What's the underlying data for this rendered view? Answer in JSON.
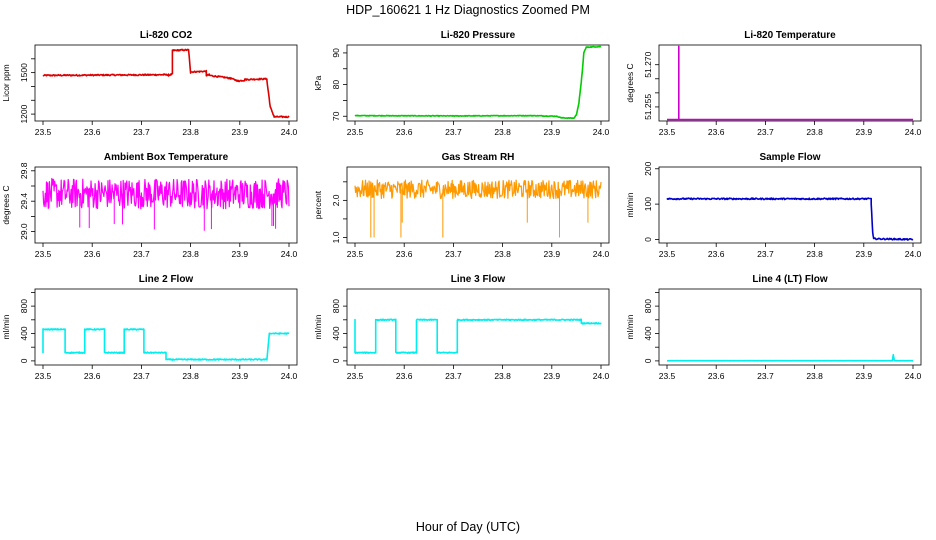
{
  "figure": {
    "title": "HDP_160621  1 Hz Diagnostics Zoomed PM",
    "xlabel": "Hour of Day (UTC)"
  },
  "chart_data": [
    {
      "type": "line",
      "title": "Li-820 CO2",
      "ylabel": "Licor ppm",
      "color": "#dd0000",
      "xlim": [
        23.5,
        24.0
      ],
      "xticks": [
        "23.5",
        "23.6",
        "23.7",
        "23.8",
        "23.9",
        "24.0"
      ],
      "ylim": [
        1150,
        1700
      ],
      "yticks": [
        1200,
        1300,
        1400,
        1500,
        1600
      ],
      "ytick_labels": [
        "1200",
        "",
        "",
        "1500",
        ""
      ],
      "x": [
        23.5,
        23.755,
        23.755,
        23.763,
        23.763,
        23.796,
        23.796,
        23.8,
        23.8,
        23.832,
        23.832,
        23.838,
        23.838,
        23.88,
        23.88,
        23.897,
        23.897,
        23.91,
        23.91,
        23.955,
        23.955,
        23.962,
        23.97,
        24.0
      ],
      "y": [
        1480,
        1485,
        1480,
        1490,
        1660,
        1665,
        1660,
        1500,
        1505,
        1510,
        1480,
        1485,
        1480,
        1460,
        1460,
        1440,
        1440,
        1445,
        1450,
        1455,
        1445,
        1250,
        1180,
        1180
      ],
      "noise": 5
    },
    {
      "type": "line",
      "title": "Li-820 Pressure",
      "ylabel": "kPa",
      "color": "#00cc00",
      "xlim": [
        23.5,
        24.0
      ],
      "xticks": [
        "23.5",
        "23.6",
        "23.7",
        "23.8",
        "23.9",
        "24.0"
      ],
      "ylim": [
        68.5,
        92.5
      ],
      "yticks": [
        70,
        75,
        80,
        85,
        90
      ],
      "ytick_labels": [
        "70",
        "",
        "80",
        "",
        "90"
      ],
      "x": [
        23.5,
        23.7,
        23.86,
        23.91,
        23.92,
        23.945,
        23.95,
        23.955,
        23.962,
        23.965,
        23.97,
        24.0
      ],
      "y": [
        70.2,
        70.1,
        70.2,
        70.0,
        69.5,
        69.4,
        70.5,
        74,
        84,
        90,
        91.8,
        92
      ],
      "noise": 0.1
    },
    {
      "type": "line",
      "title": "Li-820 Temperature",
      "ylabel": "degrees C",
      "color": "#cc00cc",
      "xlim": [
        23.5,
        24.0
      ],
      "xticks": [
        "23.5",
        "23.6",
        "23.7",
        "23.8",
        "23.9",
        "24.0"
      ],
      "ylim": [
        51.25,
        51.277
      ],
      "yticks": [
        51.255,
        51.26,
        51.265,
        51.27
      ],
      "ytick_labels": [
        "51.255",
        "",
        "",
        "51.270"
      ],
      "x": [
        23.5,
        23.524,
        23.524,
        23.524,
        23.524,
        24.0
      ],
      "y": [
        51.2505,
        51.2505,
        51.2505,
        51.2765,
        51.2505,
        51.2505
      ],
      "noise": 0
    },
    {
      "type": "line",
      "title": "Ambient Box Temperature",
      "ylabel": "degrees C",
      "color": "#ff00ff",
      "xlim": [
        23.5,
        24.0
      ],
      "xticks": [
        "23.5",
        "23.6",
        "23.7",
        "23.8",
        "23.9",
        "24.0"
      ],
      "ylim": [
        28.85,
        29.85
      ],
      "yticks": [
        29.0,
        29.2,
        29.4,
        29.6,
        29.8
      ],
      "ytick_labels": [
        "29.0",
        "",
        "29.4",
        "",
        "29.8"
      ],
      "x": [
        23.5,
        24.0
      ],
      "y": [
        29.5,
        29.5
      ],
      "noise": 0.2
    },
    {
      "type": "line",
      "title": "Gas Stream RH",
      "ylabel": "percent",
      "color": "#ff9900",
      "xlim": [
        23.5,
        24.0
      ],
      "xticks": [
        "23.5",
        "23.6",
        "23.7",
        "23.8",
        "23.9",
        "24.0"
      ],
      "ylim": [
        0.85,
        2.9
      ],
      "yticks": [
        1.0,
        1.5,
        2.0,
        2.5
      ],
      "ytick_labels": [
        "1.0",
        "",
        "2.0",
        ""
      ],
      "x": [
        23.5,
        24.0
      ],
      "y": [
        2.3,
        2.3
      ],
      "noise": 0.25
    },
    {
      "type": "line",
      "title": "Sample Flow",
      "ylabel": "ml/min",
      "color": "#0000cc",
      "xlim": [
        23.5,
        24.0
      ],
      "xticks": [
        "23.5",
        "23.6",
        "23.7",
        "23.8",
        "23.9",
        "24.0"
      ],
      "ylim": [
        -10,
        205
      ],
      "yticks": [
        0,
        100,
        200
      ],
      "ytick_labels": [
        "0",
        "100",
        "200"
      ],
      "x": [
        23.5,
        23.915,
        23.915,
        23.918,
        23.92,
        24.0
      ],
      "y": [
        115,
        115,
        100,
        20,
        2,
        0
      ],
      "noise": 2
    },
    {
      "type": "line",
      "title": "Line 2 Flow",
      "ylabel": "ml/min",
      "color": "#00eeee",
      "xlim": [
        23.5,
        24.0
      ],
      "xticks": [
        "23.5",
        "23.6",
        "23.7",
        "23.8",
        "23.9",
        "24.0"
      ],
      "ylim": [
        -60,
        1050
      ],
      "yticks": [
        0,
        200,
        400,
        600,
        800,
        1000
      ],
      "ytick_labels": [
        "0",
        "",
        "400",
        "",
        "800",
        ""
      ],
      "x": [
        23.5,
        23.5,
        23.545,
        23.545,
        23.585,
        23.585,
        23.625,
        23.625,
        23.665,
        23.665,
        23.705,
        23.705,
        23.75,
        23.75,
        23.955,
        23.96,
        24.0
      ],
      "y": [
        120,
        460,
        460,
        120,
        120,
        460,
        460,
        120,
        120,
        460,
        460,
        120,
        120,
        20,
        20,
        400,
        400
      ],
      "noise": 8
    },
    {
      "type": "line",
      "title": "Line 3 Flow",
      "ylabel": "ml/min",
      "color": "#00eeee",
      "xlim": [
        23.5,
        24.0
      ],
      "xticks": [
        "23.5",
        "23.6",
        "23.7",
        "23.8",
        "23.9",
        "24.0"
      ],
      "ylim": [
        -60,
        1050
      ],
      "yticks": [
        0,
        200,
        400,
        600,
        800
      ],
      "ytick_labels": [
        "0",
        "",
        "400",
        "",
        "800"
      ],
      "x": [
        23.5,
        23.5,
        23.5,
        23.542,
        23.542,
        23.583,
        23.583,
        23.625,
        23.625,
        23.667,
        23.667,
        23.708,
        23.708,
        23.96,
        23.96,
        24.0
      ],
      "y": [
        600,
        600,
        120,
        120,
        600,
        600,
        120,
        120,
        600,
        600,
        120,
        120,
        600,
        600,
        550,
        550
      ],
      "noise": 8
    },
    {
      "type": "line",
      "title": "Line 4 (LT) Flow",
      "ylabel": "ml/min",
      "color": "#00eeee",
      "xlim": [
        23.5,
        24.0
      ],
      "xticks": [
        "23.5",
        "23.6",
        "23.7",
        "23.8",
        "23.9",
        "24.0"
      ],
      "ylim": [
        -60,
        1050
      ],
      "yticks": [
        0,
        200,
        400,
        600,
        800,
        1000
      ],
      "ytick_labels": [
        "0",
        "",
        "400",
        "",
        "800",
        ""
      ],
      "x": [
        23.5,
        23.958,
        23.96,
        23.962,
        23.965,
        24.0
      ],
      "y": [
        2,
        2,
        90,
        5,
        2,
        2
      ],
      "noise": 1
    }
  ]
}
